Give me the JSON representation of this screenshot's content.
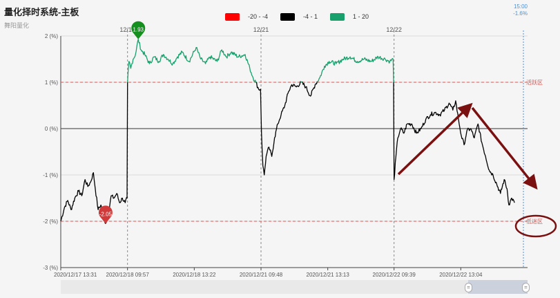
{
  "header": {
    "title": "量化择时系统-主板",
    "subtitle": "舞阳量化"
  },
  "legend": {
    "items": [
      {
        "label": "-20 - -4",
        "color": "#ff0000"
      },
      {
        "label": "-4 - 1",
        "color": "#000000"
      },
      {
        "label": "1 - 20",
        "color": "#18a06c"
      }
    ]
  },
  "chart_data": {
    "type": "line",
    "title": "量化择时系统-主板",
    "y_unit": "(%)",
    "ylim": [
      -3,
      2
    ],
    "y_ticks": [
      {
        "value": 2,
        "label": "2 (%)"
      },
      {
        "value": 1,
        "label": "1 (%)"
      },
      {
        "value": 0,
        "label": "0 (%)"
      },
      {
        "value": -1,
        "label": "-1 (%)"
      },
      {
        "value": -2,
        "label": "-2 (%)"
      },
      {
        "value": -3,
        "label": "-3 (%)"
      }
    ],
    "x_ticks": [
      {
        "pos": 0.0,
        "label": "2020/12/17 13:31"
      },
      {
        "pos": 0.143,
        "label": "2020/12/18 09:57"
      },
      {
        "pos": 0.286,
        "label": "2020/12/18 13:22"
      },
      {
        "pos": 0.429,
        "label": "2020/12/21 09:48"
      },
      {
        "pos": 0.572,
        "label": "2020/12/21 13:13"
      },
      {
        "pos": 0.714,
        "label": "2020/12/22 09:39"
      },
      {
        "pos": 0.857,
        "label": "2020/12/22 13:04"
      }
    ],
    "day_lines": [
      {
        "pos": 0.143,
        "label": "12/18"
      },
      {
        "pos": 0.429,
        "label": "12/21"
      },
      {
        "pos": 0.714,
        "label": "12/22"
      }
    ],
    "end_marker": {
      "time": "15:00",
      "value_label": "-1.6%"
    },
    "ref_lines": [
      {
        "value": 1,
        "label": "活跃区",
        "color": "#d9534f"
      },
      {
        "value": -2,
        "label": "低迷区",
        "color": "#d9534f"
      }
    ],
    "color_bands": [
      {
        "min": -20,
        "max": -4,
        "color": "#ff0000"
      },
      {
        "min": -4,
        "max": 1,
        "color": "#000000"
      },
      {
        "min": 1,
        "max": 20,
        "color": "#18a06c"
      }
    ],
    "keypoints": [
      [
        0.0,
        -2.0
      ],
      [
        0.008,
        -1.7
      ],
      [
        0.015,
        -1.55
      ],
      [
        0.022,
        -1.75
      ],
      [
        0.03,
        -1.5
      ],
      [
        0.038,
        -1.35
      ],
      [
        0.045,
        -1.45
      ],
      [
        0.052,
        -1.1
      ],
      [
        0.058,
        -1.25
      ],
      [
        0.064,
        -1.15
      ],
      [
        0.07,
        -0.95
      ],
      [
        0.074,
        -1.3
      ],
      [
        0.08,
        -1.75
      ],
      [
        0.086,
        -1.65
      ],
      [
        0.092,
        -1.9
      ],
      [
        0.096,
        -2.05
      ],
      [
        0.102,
        -1.85
      ],
      [
        0.108,
        -1.45
      ],
      [
        0.114,
        -1.5
      ],
      [
        0.12,
        -1.4
      ],
      [
        0.126,
        -1.6
      ],
      [
        0.132,
        -1.5
      ],
      [
        0.138,
        -1.6
      ],
      [
        0.142,
        -1.5
      ],
      [
        0.143,
        1.0
      ],
      [
        0.146,
        1.45
      ],
      [
        0.15,
        1.3
      ],
      [
        0.155,
        1.5
      ],
      [
        0.16,
        1.6
      ],
      [
        0.166,
        1.93
      ],
      [
        0.172,
        1.7
      ],
      [
        0.18,
        1.6
      ],
      [
        0.19,
        1.4
      ],
      [
        0.2,
        1.55
      ],
      [
        0.21,
        1.45
      ],
      [
        0.22,
        1.6
      ],
      [
        0.23,
        1.5
      ],
      [
        0.24,
        1.4
      ],
      [
        0.25,
        1.55
      ],
      [
        0.26,
        1.65
      ],
      [
        0.275,
        1.45
      ],
      [
        0.29,
        1.75
      ],
      [
        0.3,
        1.5
      ],
      [
        0.31,
        1.4
      ],
      [
        0.32,
        1.55
      ],
      [
        0.335,
        1.45
      ],
      [
        0.345,
        1.7
      ],
      [
        0.355,
        1.55
      ],
      [
        0.365,
        1.65
      ],
      [
        0.38,
        1.55
      ],
      [
        0.395,
        1.6
      ],
      [
        0.405,
        1.3
      ],
      [
        0.412,
        1.1
      ],
      [
        0.418,
        1.0
      ],
      [
        0.424,
        0.85
      ],
      [
        0.428,
        0.85
      ],
      [
        0.43,
        -0.1
      ],
      [
        0.433,
        -0.8
      ],
      [
        0.436,
        -1.0
      ],
      [
        0.44,
        -0.6
      ],
      [
        0.446,
        -0.4
      ],
      [
        0.452,
        -0.6
      ],
      [
        0.458,
        -0.2
      ],
      [
        0.465,
        0.1
      ],
      [
        0.472,
        0.3
      ],
      [
        0.48,
        0.5
      ],
      [
        0.488,
        0.8
      ],
      [
        0.495,
        0.95
      ],
      [
        0.505,
        0.9
      ],
      [
        0.515,
        1.0
      ],
      [
        0.525,
        0.9
      ],
      [
        0.535,
        0.7
      ],
      [
        0.545,
        0.95
      ],
      [
        0.555,
        1.1
      ],
      [
        0.565,
        1.35
      ],
      [
        0.575,
        1.45
      ],
      [
        0.59,
        1.4
      ],
      [
        0.605,
        1.5
      ],
      [
        0.62,
        1.55
      ],
      [
        0.635,
        1.45
      ],
      [
        0.65,
        1.5
      ],
      [
        0.665,
        1.45
      ],
      [
        0.68,
        1.55
      ],
      [
        0.695,
        1.5
      ],
      [
        0.705,
        1.45
      ],
      [
        0.712,
        1.5
      ],
      [
        0.713,
        1.0
      ],
      [
        0.714,
        -1.1
      ],
      [
        0.718,
        -0.6
      ],
      [
        0.722,
        -0.2
      ],
      [
        0.728,
        0.0
      ],
      [
        0.735,
        -0.1
      ],
      [
        0.742,
        0.1
      ],
      [
        0.752,
        0.1
      ],
      [
        0.762,
        -0.1
      ],
      [
        0.772,
        0.0
      ],
      [
        0.782,
        0.2
      ],
      [
        0.792,
        0.3
      ],
      [
        0.802,
        0.35
      ],
      [
        0.812,
        0.3
      ],
      [
        0.822,
        0.4
      ],
      [
        0.832,
        0.55
      ],
      [
        0.84,
        0.4
      ],
      [
        0.846,
        0.6
      ],
      [
        0.852,
        0.2
      ],
      [
        0.858,
        -0.15
      ],
      [
        0.864,
        -0.35
      ],
      [
        0.87,
        -0.05
      ],
      [
        0.878,
        0.0
      ],
      [
        0.886,
        -0.2
      ],
      [
        0.894,
        0.1
      ],
      [
        0.902,
        -0.3
      ],
      [
        0.91,
        -0.6
      ],
      [
        0.918,
        -0.9
      ],
      [
        0.926,
        -1.0
      ],
      [
        0.934,
        -1.2
      ],
      [
        0.942,
        -1.4
      ],
      [
        0.95,
        -1.1
      ],
      [
        0.956,
        -1.3
      ],
      [
        0.96,
        -1.65
      ],
      [
        0.966,
        -1.5
      ],
      [
        0.972,
        -1.6
      ]
    ],
    "markers": [
      {
        "type": "max",
        "pos": 0.166,
        "value": 1.93,
        "label": "1.93",
        "color": "#15901f"
      },
      {
        "type": "min",
        "pos": 0.096,
        "value": -2.05,
        "label": "-2.05",
        "color": "#d03a3a"
      }
    ]
  }
}
